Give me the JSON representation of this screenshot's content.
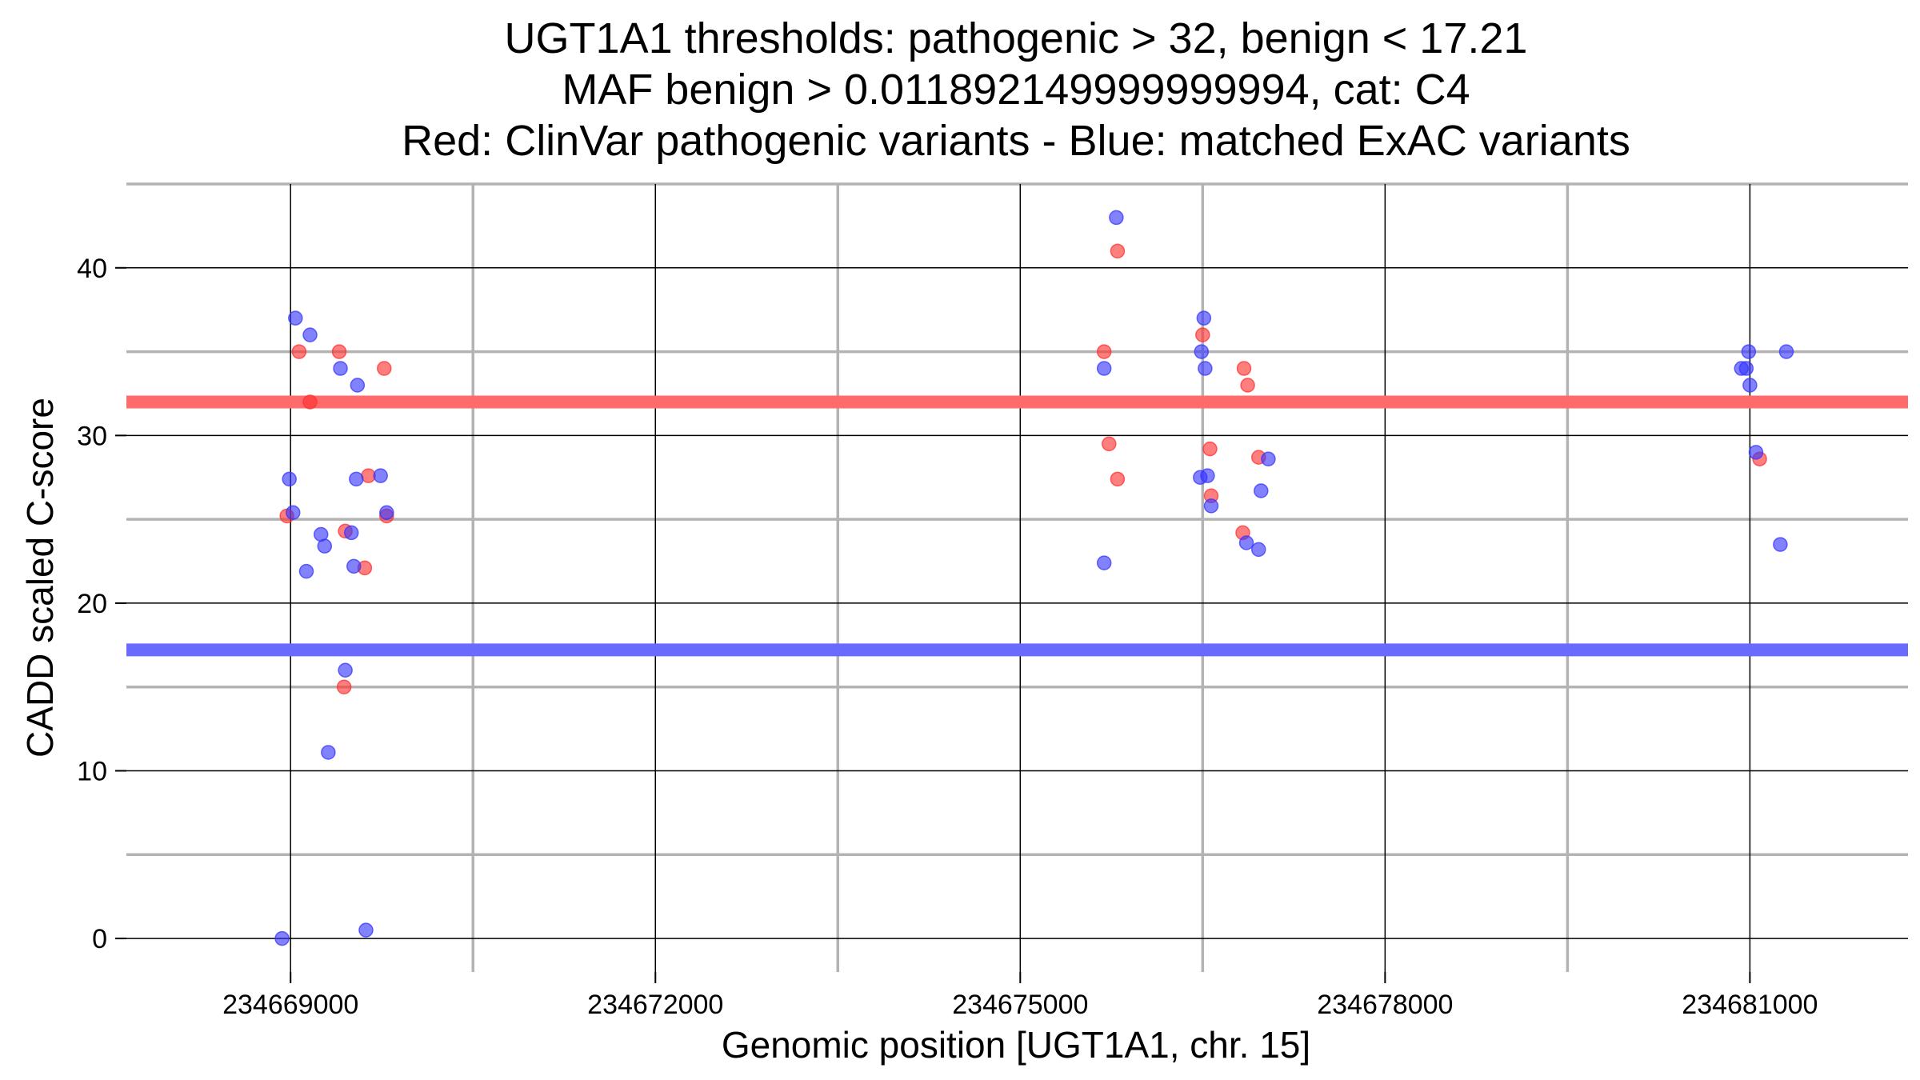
{
  "chart_data": {
    "type": "scatter",
    "title_lines": [
      "UGT1A1 thresholds: pathogenic > 32, benign < 17.21",
      "MAF benign > 0.011892149999999994, cat: C4",
      "Red: ClinVar pathogenic variants - Blue: matched ExAC variants"
    ],
    "xlabel": "Genomic position [UGT1A1, chr. 15]",
    "ylabel": "CADD scaled C-score",
    "xlim": [
      234667650,
      234682300
    ],
    "ylim": [
      -2,
      45
    ],
    "x_major_ticks": [
      234669000,
      234672000,
      234675000,
      234678000,
      234681000
    ],
    "x_tick_labels": [
      "234669000",
      "234672000",
      "234675000",
      "234678000",
      "234681000"
    ],
    "x_minor_grid": [
      234670500,
      234673500,
      234676500,
      234679500
    ],
    "y_major_ticks": [
      0,
      10,
      20,
      30,
      40
    ],
    "y_tick_labels": [
      "0",
      "10",
      "20",
      "30",
      "40"
    ],
    "y_minor_grid": [
      5,
      15,
      25,
      35,
      45
    ],
    "grid": true,
    "thresholds": [
      {
        "label": "pathogenic",
        "value": 32,
        "color": "#ff6b6b"
      },
      {
        "label": "benign",
        "value": 17.21,
        "color": "#6a6aff"
      }
    ],
    "series": [
      {
        "color": "#ff3030",
        "points": [
          [
            234668970,
            25.2
          ],
          [
            234669070,
            35.0
          ],
          [
            234669160,
            32.0
          ],
          [
            234669400,
            35.0
          ],
          [
            234669450,
            24.3
          ],
          [
            234669440,
            15.0
          ],
          [
            234669610,
            22.1
          ],
          [
            234669640,
            27.6
          ],
          [
            234669770,
            34.0
          ],
          [
            234669790,
            25.2
          ],
          [
            234675690,
            35.0
          ],
          [
            234675730,
            29.5
          ],
          [
            234675800,
            27.4
          ],
          [
            234675800,
            41.0
          ],
          [
            234676500,
            36.0
          ],
          [
            234676560,
            29.2
          ],
          [
            234676570,
            26.4
          ],
          [
            234676840,
            34.0
          ],
          [
            234676830,
            24.2
          ],
          [
            234676870,
            33.0
          ],
          [
            234676960,
            28.7
          ],
          [
            234681080,
            28.6
          ]
        ]
      },
      {
        "color": "#3535ff",
        "points": [
          [
            234668930,
            0.0
          ],
          [
            234668990,
            27.4
          ],
          [
            234669020,
            25.4
          ],
          [
            234669040,
            37.0
          ],
          [
            234669130,
            21.9
          ],
          [
            234669160,
            36.0
          ],
          [
            234669250,
            24.1
          ],
          [
            234669280,
            23.4
          ],
          [
            234669310,
            11.1
          ],
          [
            234669410,
            34.0
          ],
          [
            234669450,
            16.0
          ],
          [
            234669500,
            24.2
          ],
          [
            234669520,
            22.2
          ],
          [
            234669540,
            27.4
          ],
          [
            234669550,
            33.0
          ],
          [
            234669620,
            0.5
          ],
          [
            234669740,
            27.6
          ],
          [
            234669790,
            25.4
          ],
          [
            234675690,
            22.4
          ],
          [
            234675690,
            34.0
          ],
          [
            234675790,
            43.0
          ],
          [
            234676480,
            27.5
          ],
          [
            234676490,
            35.0
          ],
          [
            234676510,
            37.0
          ],
          [
            234676520,
            34.0
          ],
          [
            234676540,
            27.6
          ],
          [
            234676570,
            25.8
          ],
          [
            234676860,
            23.6
          ],
          [
            234676960,
            23.2
          ],
          [
            234676980,
            26.7
          ],
          [
            234677040,
            28.6
          ],
          [
            234680930,
            34.0
          ],
          [
            234680970,
            34.0
          ],
          [
            234680990,
            35.0
          ],
          [
            234681000,
            33.0
          ],
          [
            234681050,
            29.0
          ],
          [
            234681250,
            23.5
          ],
          [
            234681300,
            35.0
          ]
        ]
      }
    ]
  }
}
